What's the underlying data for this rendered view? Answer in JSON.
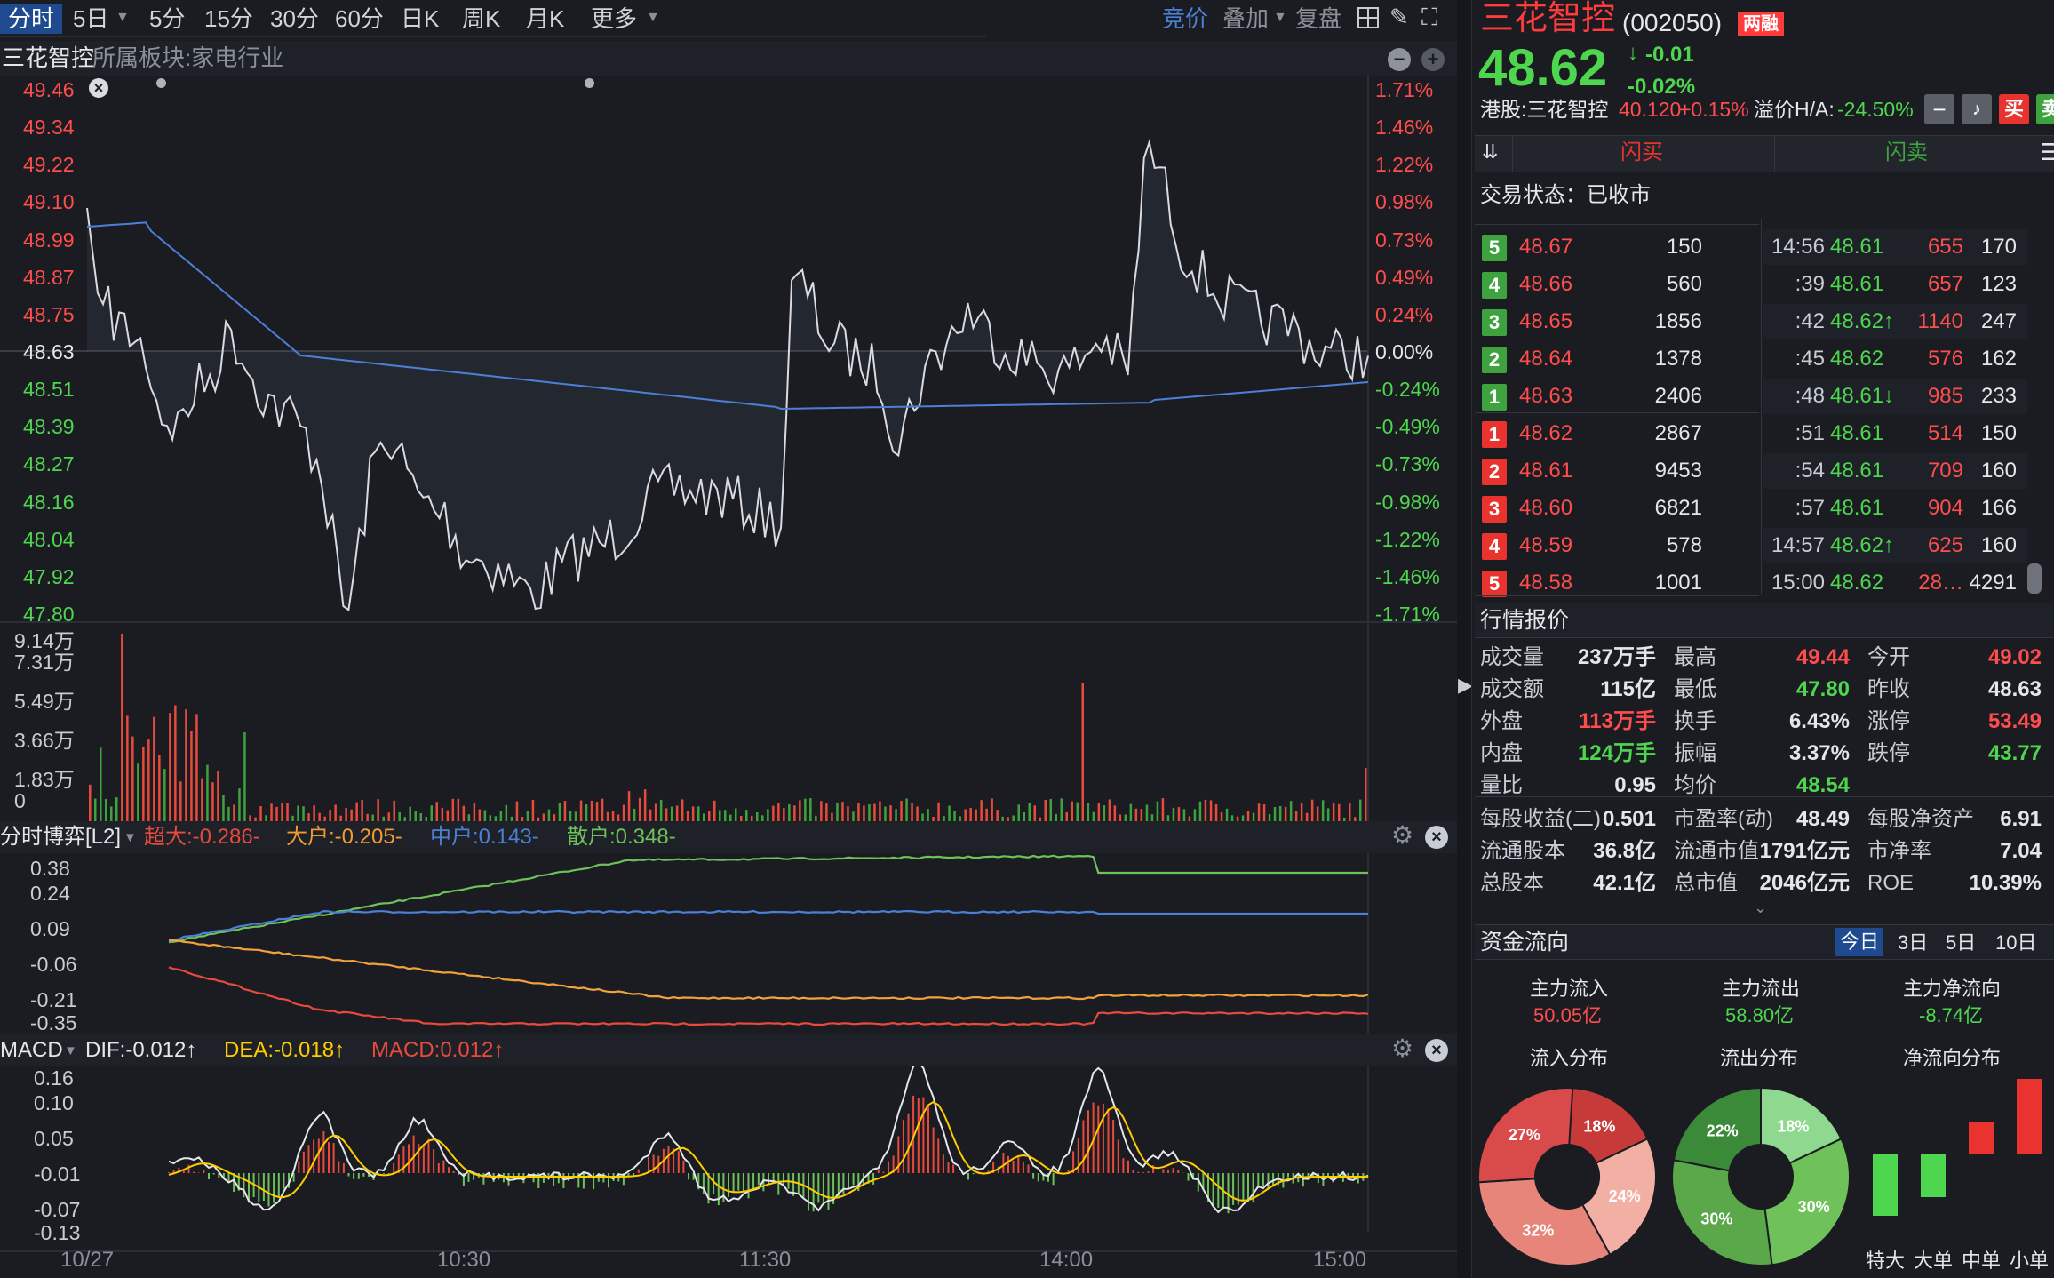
{
  "toolbar": {
    "tabs": [
      "分时",
      "5日",
      "5分",
      "15分",
      "30分",
      "60分",
      "日K",
      "周K",
      "月K",
      "更多"
    ],
    "bidding": "竞价",
    "overlay": "叠加",
    "restore": "复盘"
  },
  "stock": {
    "name": "三花智控",
    "code": "(002050)",
    "tag": "两融",
    "price": "48.62",
    "change": "-0.01",
    "change_pct": "-0.02%",
    "hk_label": "港股:三花智控",
    "hk_price": "40.120",
    "hk_pct": "+0.15%",
    "premium_label": "溢价H/A:",
    "premium": "-24.50%",
    "buy_btn": "买",
    "sell_btn": "卖"
  },
  "chart_header": {
    "name": "三花智控",
    "sector": "所属板块:家电行业"
  },
  "trade": {
    "flash_buy": "闪买",
    "flash_sell": "闪卖",
    "status": "交易状态：已收市"
  },
  "orderbook": {
    "asks": [
      {
        "lvl": "5",
        "price": "48.67",
        "vol": "150"
      },
      {
        "lvl": "4",
        "price": "48.66",
        "vol": "560"
      },
      {
        "lvl": "3",
        "price": "48.65",
        "vol": "1856"
      },
      {
        "lvl": "2",
        "price": "48.64",
        "vol": "1378"
      },
      {
        "lvl": "1",
        "price": "48.63",
        "vol": "2406"
      }
    ],
    "bids": [
      {
        "lvl": "1",
        "price": "48.62",
        "vol": "2867"
      },
      {
        "lvl": "2",
        "price": "48.61",
        "vol": "9453"
      },
      {
        "lvl": "3",
        "price": "48.60",
        "vol": "6821"
      },
      {
        "lvl": "4",
        "price": "48.59",
        "vol": "578"
      },
      {
        "lvl": "5",
        "price": "48.58",
        "vol": "1001"
      }
    ]
  },
  "ticks": [
    {
      "t": "14:56",
      "p": "48.61",
      "v": "655",
      "n": "170"
    },
    {
      "t": ":39",
      "p": "48.61",
      "v": "657",
      "n": "123"
    },
    {
      "t": ":42",
      "p": "48.62↑",
      "v": "1140",
      "n": "247"
    },
    {
      "t": ":45",
      "p": "48.62",
      "v": "576",
      "n": "162"
    },
    {
      "t": ":48",
      "p": "48.61↓",
      "v": "985",
      "n": "233"
    },
    {
      "t": ":51",
      "p": "48.61",
      "v": "514",
      "n": "150"
    },
    {
      "t": ":54",
      "p": "48.61",
      "v": "709",
      "n": "160"
    },
    {
      "t": ":57",
      "p": "48.61",
      "v": "904",
      "n": "166"
    },
    {
      "t": "14:57",
      "p": "48.62↑",
      "v": "625",
      "n": "160"
    },
    {
      "t": "15:00",
      "p": "48.62",
      "v": "28…",
      "n": "4291"
    }
  ],
  "quote": {
    "title": "行情报价",
    "rows": [
      [
        [
          "成交量",
          "237万手",
          "wh"
        ],
        [
          "最高",
          "49.44",
          "rg"
        ],
        [
          "今开",
          "49.02",
          "rg"
        ]
      ],
      [
        [
          "成交额",
          "115亿",
          "wh"
        ],
        [
          "最低",
          "47.80",
          "gr"
        ],
        [
          "昨收",
          "48.63",
          "wh"
        ]
      ],
      [
        [
          "外盘",
          "113万手",
          "rg"
        ],
        [
          "换手",
          "6.43%",
          "wh"
        ],
        [
          "涨停",
          "53.49",
          "rg"
        ]
      ],
      [
        [
          "内盘",
          "124万手",
          "gr"
        ],
        [
          "振幅",
          "3.37%",
          "wh"
        ],
        [
          "跌停",
          "43.77",
          "gr"
        ]
      ],
      [
        [
          "量比",
          "0.95",
          "wh"
        ],
        [
          "均价",
          "48.54",
          "gr"
        ],
        [
          "",
          "",
          " "
        ]
      ]
    ],
    "rows2": [
      [
        [
          "每股收益(二)",
          "0.501"
        ],
        [
          "市盈率(动)",
          "48.49"
        ],
        [
          "每股净资产",
          "6.91"
        ]
      ],
      [
        [
          "流通股本",
          "36.8亿"
        ],
        [
          "流通市值",
          "1791亿元"
        ],
        [
          "市净率",
          "7.04"
        ]
      ],
      [
        [
          "总股本",
          "42.1亿"
        ],
        [
          "总市值",
          "2046亿元"
        ],
        [
          "ROE",
          "10.39%"
        ]
      ]
    ]
  },
  "flow": {
    "title": "资金流向",
    "periods": [
      "今日",
      "3日",
      "5日",
      "10日"
    ],
    "in_label": "主力流入",
    "in_val": "50.05亿",
    "out_label": "主力流出",
    "out_val": "58.80亿",
    "net_label": "主力净流向",
    "net_val": "-8.74亿",
    "in_dist": "流入分布",
    "out_dist": "流出分布",
    "net_dist": "净流向分布",
    "in_pcts": [
      18,
      24,
      32,
      27
    ],
    "out_pcts": [
      18,
      30,
      30,
      22
    ],
    "net_bars": [
      {
        "label": "特大",
        "value": -1.0
      },
      {
        "label": "大单",
        "value": -0.7
      },
      {
        "label": "中单",
        "value": 0.5
      },
      {
        "label": "小单",
        "value": 1.2
      }
    ]
  },
  "price_axis": {
    "left": [
      "49.46",
      "49.34",
      "49.22",
      "49.10",
      "48.99",
      "48.87",
      "48.75",
      "48.63",
      "48.51",
      "48.39",
      "48.27",
      "48.16",
      "48.04",
      "47.92",
      "47.80"
    ],
    "right": [
      "1.71%",
      "1.46%",
      "1.22%",
      "0.98%",
      "0.73%",
      "0.49%",
      "0.24%",
      "0.00%",
      "-0.24%",
      "-0.49%",
      "-0.73%",
      "-0.98%",
      "-1.22%",
      "-1.46%",
      "-1.71%"
    ]
  },
  "volume_axis": [
    "9.14万",
    "7.31万",
    "5.49万",
    "3.66万",
    "1.83万",
    "0"
  ],
  "game": {
    "title": "分时博弈[L2]",
    "super": "超大:-0.286-",
    "big": "大户:-0.205-",
    "mid": "中户:0.143-",
    "retail": "散户:0.348-",
    "axis": [
      "0.38",
      "0.24",
      "0.09",
      "-0.06",
      "-0.21",
      "-0.35"
    ]
  },
  "macd": {
    "title": "MACD",
    "dif": "DIF:-0.012↑",
    "dea": "DEA:-0.018↑",
    "macd": "MACD:0.012↑",
    "axis": [
      "0.16",
      "0.10",
      "0.05",
      "-0.01",
      "-0.07",
      "-0.13"
    ]
  },
  "time_axis": [
    "10/27",
    "10:30",
    "11:30",
    "14:00",
    "15:00"
  ]
}
